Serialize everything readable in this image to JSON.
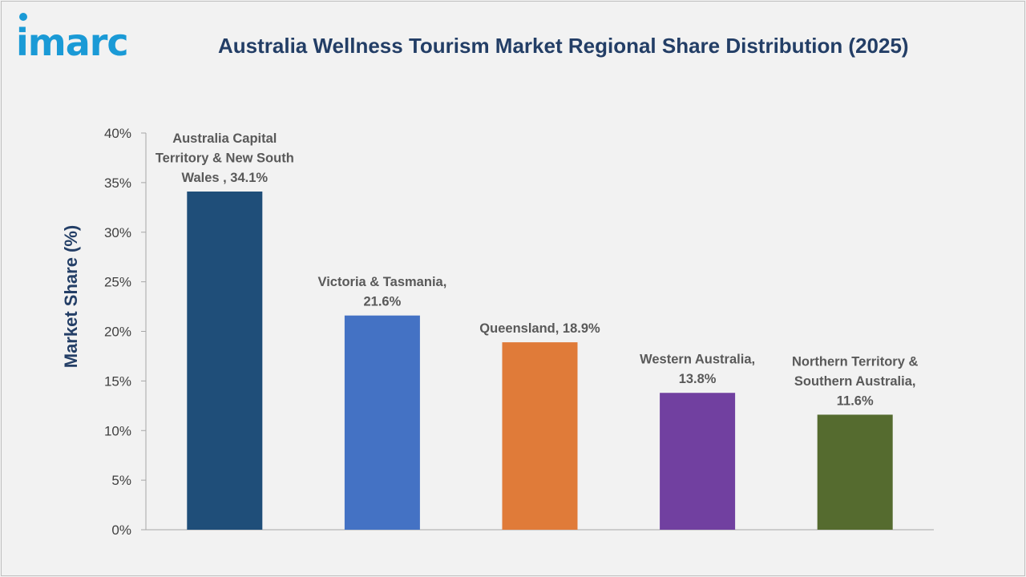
{
  "brand": {
    "logo_text": "imarc"
  },
  "chart_data": {
    "type": "bar",
    "title": "Australia Wellness Tourism Market Regional Share Distribution (2025)",
    "xlabel": "",
    "ylabel": "Market Share (%)",
    "ylim": [
      0,
      40
    ],
    "yticks": [
      0,
      5,
      10,
      15,
      20,
      25,
      30,
      35,
      40
    ],
    "ytick_labels": [
      "0%",
      "5%",
      "10%",
      "15%",
      "20%",
      "25%",
      "30%",
      "35%",
      "40%"
    ],
    "grid": false,
    "categories": [
      "Australia Capital Territory & New South Wales",
      "Victoria & Tasmania",
      "Queensland",
      "Western Australia",
      "Northern Territory & Southern Australia"
    ],
    "values": [
      34.1,
      21.6,
      18.9,
      13.8,
      11.6
    ],
    "colors": [
      "#1f4e79",
      "#4472c4",
      "#e07b39",
      "#7140a0",
      "#556b2f"
    ],
    "data_labels": [
      [
        "Australia Capital",
        "Territory & New South",
        "Wales , 34.1%"
      ],
      [
        "Victoria & Tasmania,",
        "21.6%"
      ],
      [
        "Queensland, 18.9%"
      ],
      [
        "Western Australia,",
        "13.8%"
      ],
      [
        "Northern Territory &",
        "Southern Australia,",
        "11.6%"
      ]
    ]
  }
}
